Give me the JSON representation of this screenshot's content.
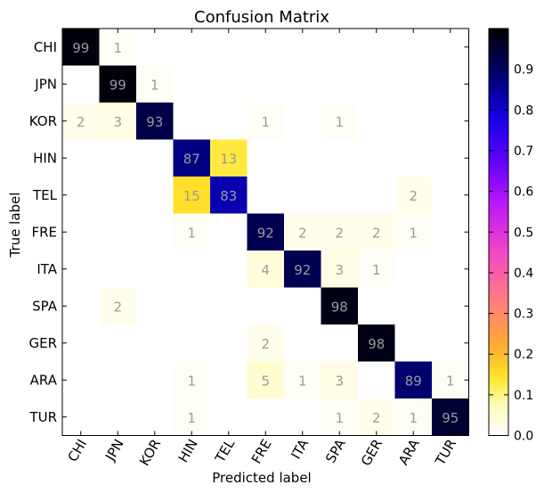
{
  "chart_data": {
    "type": "heatmap",
    "title": "Confusion Matrix",
    "xlabel": "Predicted label",
    "ylabel": "True label",
    "x_categories": [
      "CHI",
      "JPN",
      "KOR",
      "HIN",
      "TEL",
      "FRE",
      "ITA",
      "SPA",
      "GER",
      "ARA",
      "TUR"
    ],
    "y_categories": [
      "CHI",
      "JPN",
      "KOR",
      "HIN",
      "TEL",
      "FRE",
      "ITA",
      "SPA",
      "GER",
      "ARA",
      "TUR"
    ],
    "values": [
      [
        99,
        1,
        0,
        0,
        0,
        0,
        0,
        0,
        0,
        0,
        0
      ],
      [
        0,
        99,
        1,
        0,
        0,
        0,
        0,
        0,
        0,
        0,
        0
      ],
      [
        2,
        3,
        93,
        0,
        0,
        1,
        0,
        1,
        0,
        0,
        0
      ],
      [
        0,
        0,
        0,
        87,
        13,
        0,
        0,
        0,
        0,
        0,
        0
      ],
      [
        0,
        0,
        0,
        15,
        83,
        0,
        0,
        0,
        0,
        2,
        0
      ],
      [
        0,
        0,
        0,
        1,
        0,
        92,
        2,
        2,
        2,
        1,
        0
      ],
      [
        0,
        0,
        0,
        0,
        0,
        4,
        92,
        3,
        1,
        0,
        0
      ],
      [
        0,
        2,
        0,
        0,
        0,
        0,
        0,
        98,
        0,
        0,
        0
      ],
      [
        0,
        0,
        0,
        0,
        0,
        2,
        0,
        0,
        98,
        0,
        0
      ],
      [
        0,
        0,
        0,
        1,
        0,
        5,
        1,
        3,
        0,
        89,
        1
      ],
      [
        0,
        0,
        0,
        1,
        0,
        0,
        0,
        1,
        2,
        1,
        95
      ]
    ],
    "colorbar": {
      "range": [
        0.0,
        1.0
      ],
      "ticks": [
        "0.0",
        "0.1",
        "0.2",
        "0.3",
        "0.4",
        "0.5",
        "0.6",
        "0.7",
        "0.8",
        "0.9"
      ],
      "colormap": "gnuplot2_r"
    },
    "label_color": "#9a9a9a"
  }
}
